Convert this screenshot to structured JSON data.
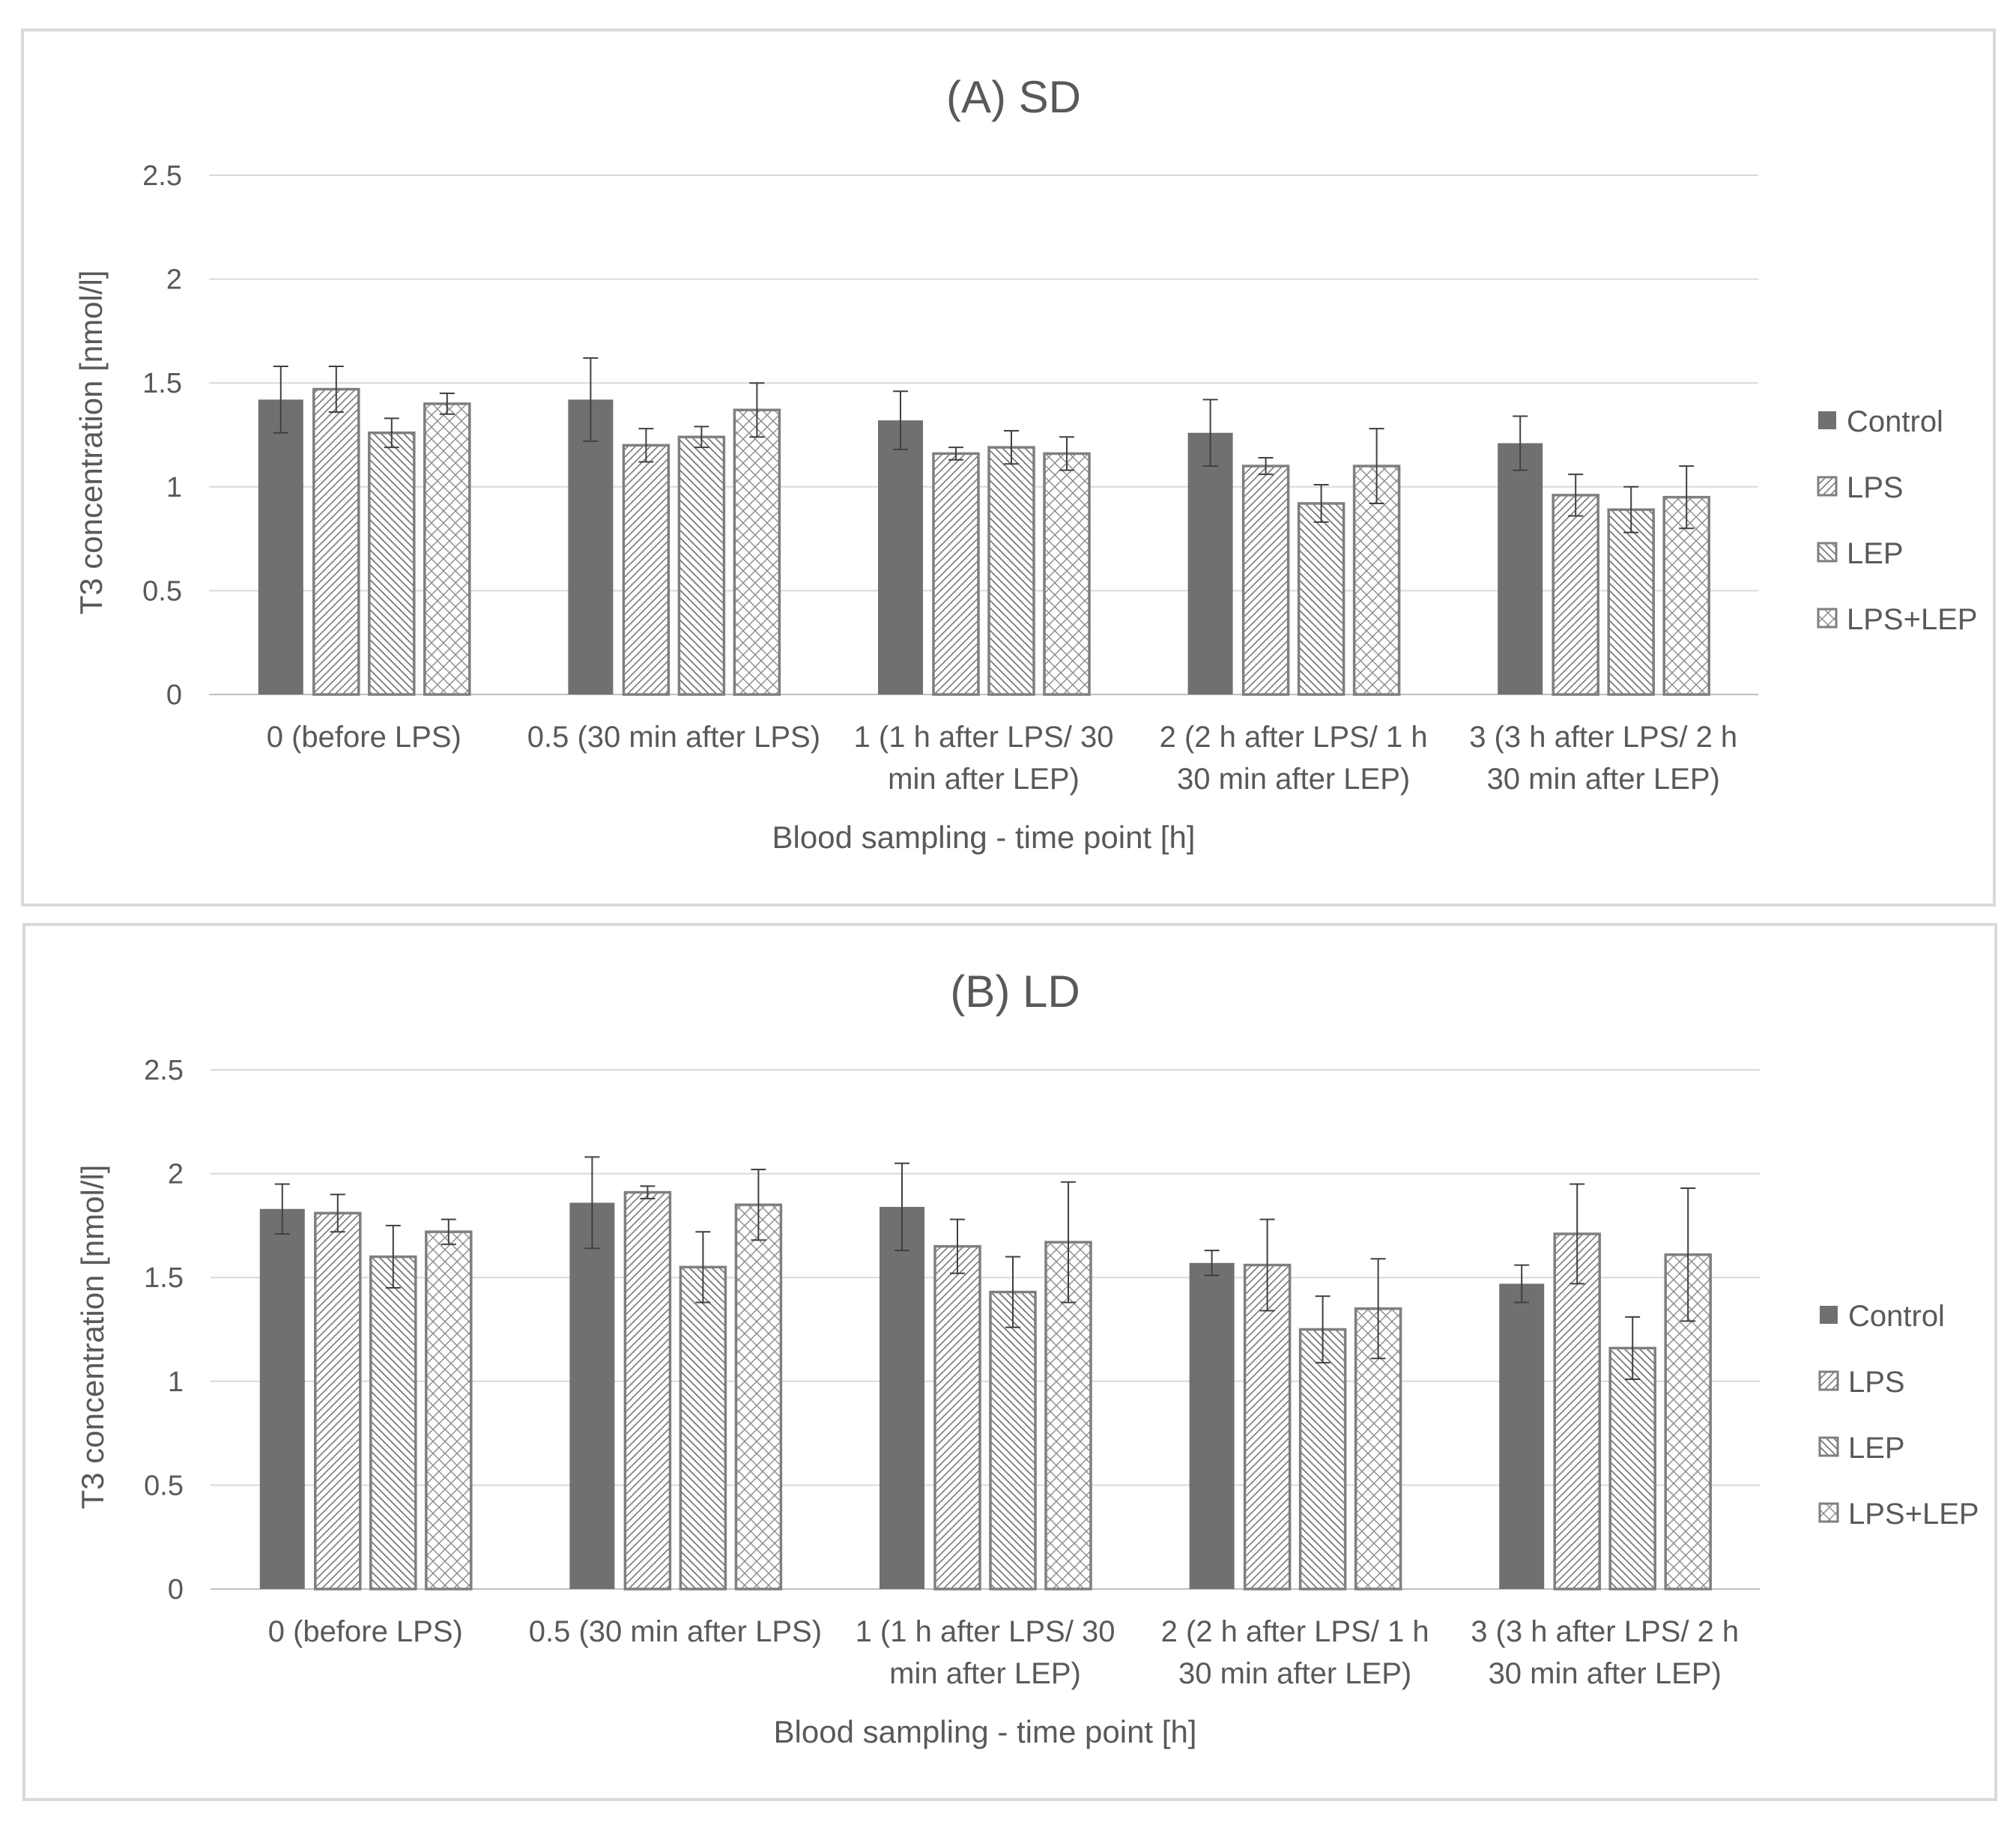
{
  "chart_data": [
    {
      "type": "bar",
      "title": "(A) SD",
      "xlabel": "Blood sampling - time point [h]",
      "ylabel": "T3 concentration [nmol/l]",
      "ylim": [
        0,
        2.5
      ],
      "yticks": [
        "0",
        "0.5",
        "1",
        "1.5",
        "2",
        "2.5"
      ],
      "categories": [
        [
          "0 (before LPS)"
        ],
        [
          "0.5 (30 min after LPS)"
        ],
        [
          "1 (1 h after LPS/ 30",
          "min after LEP)"
        ],
        [
          "2 (2 h after LPS/ 1 h",
          "30 min after LEP)"
        ],
        [
          "3 (3 h after LPS/ 2 h",
          "30 min after LEP)"
        ]
      ],
      "series": [
        {
          "name": "Control",
          "values": [
            1.42,
            1.42,
            1.32,
            1.26,
            1.21
          ],
          "errors": [
            0.16,
            0.2,
            0.14,
            0.16,
            0.13
          ]
        },
        {
          "name": "LPS",
          "values": [
            1.47,
            1.2,
            1.16,
            1.1,
            0.96
          ],
          "errors": [
            0.11,
            0.08,
            0.03,
            0.04,
            0.1
          ]
        },
        {
          "name": "LEP",
          "values": [
            1.26,
            1.24,
            1.19,
            0.92,
            0.89
          ],
          "errors": [
            0.07,
            0.05,
            0.08,
            0.09,
            0.11
          ]
        },
        {
          "name": "LPS+LEP",
          "values": [
            1.4,
            1.37,
            1.16,
            1.1,
            0.95
          ],
          "errors": [
            0.05,
            0.13,
            0.08,
            0.18,
            0.15
          ]
        }
      ],
      "legend": "right"
    },
    {
      "type": "bar",
      "title": "(B) LD",
      "xlabel": "Blood sampling - time point [h]",
      "ylabel": "T3 concentration [nmol/l]",
      "ylim": [
        0,
        2.5
      ],
      "yticks": [
        "0",
        "0.5",
        "1",
        "1.5",
        "2",
        "2.5"
      ],
      "categories": [
        [
          "0 (before LPS)"
        ],
        [
          "0.5 (30 min after LPS)"
        ],
        [
          "1 (1 h after LPS/ 30",
          "min after LEP)"
        ],
        [
          "2 (2 h after LPS/ 1 h",
          "30 min after LEP)"
        ],
        [
          "3 (3 h after LPS/ 2 h",
          "30 min after LEP)"
        ]
      ],
      "series": [
        {
          "name": "Control",
          "values": [
            1.83,
            1.86,
            1.84,
            1.57,
            1.47
          ],
          "errors": [
            0.12,
            0.22,
            0.21,
            0.06,
            0.09
          ]
        },
        {
          "name": "LPS",
          "values": [
            1.81,
            1.91,
            1.65,
            1.56,
            1.71
          ],
          "errors": [
            0.09,
            0.03,
            0.13,
            0.22,
            0.24
          ]
        },
        {
          "name": "LEP",
          "values": [
            1.6,
            1.55,
            1.43,
            1.25,
            1.16
          ],
          "errors": [
            0.15,
            0.17,
            0.17,
            0.16,
            0.15
          ]
        },
        {
          "name": "LPS+LEP",
          "values": [
            1.72,
            1.85,
            1.67,
            1.35,
            1.61
          ],
          "errors": [
            0.06,
            0.17,
            0.29,
            0.24,
            0.32
          ]
        }
      ],
      "legend": "right"
    }
  ]
}
